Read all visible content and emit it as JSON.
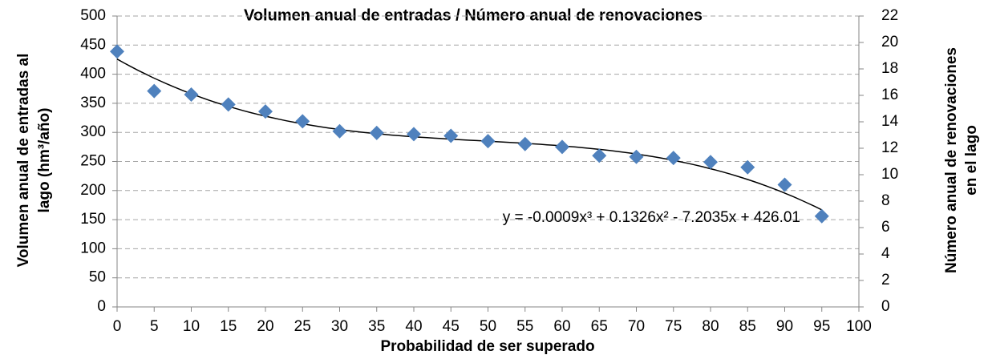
{
  "chart_data": {
    "type": "scatter",
    "title": "Volumen anual de entradas / Número anual de renovaciones",
    "xlabel": "Probabilidad de ser superado",
    "ylabel": [
      "Volumen  anual de entradas al",
      "lago (hm³/año)"
    ],
    "y2label": [
      "Número anual de renovaciones",
      "en el lago"
    ],
    "x": [
      0,
      5,
      10,
      15,
      20,
      25,
      30,
      35,
      40,
      45,
      50,
      55,
      60,
      65,
      70,
      75,
      80,
      85,
      90,
      95
    ],
    "series": [
      {
        "color": "#4f81bd",
        "values": [
          439,
          371,
          365,
          348,
          336,
          319,
          302,
          299,
          297,
          294,
          285,
          280,
          275,
          260,
          258,
          256,
          249,
          240,
          210,
          156
        ]
      }
    ],
    "trendline": {
      "label": "y = -0.0009x³ + 0.1326x² - 7.2035x + 426.01",
      "coefficients": [
        -0.0009,
        0.1326,
        -7.2035,
        426.01
      ],
      "color": "#000000"
    },
    "xlim": [
      0,
      100
    ],
    "xticks": [
      0,
      5,
      10,
      15,
      20,
      25,
      30,
      35,
      40,
      45,
      50,
      55,
      60,
      65,
      70,
      75,
      80,
      85,
      90,
      95,
      100
    ],
    "ylim": [
      0,
      500
    ],
    "yticks": [
      0,
      50,
      100,
      150,
      200,
      250,
      300,
      350,
      400,
      450,
      500
    ],
    "y2lim": [
      0,
      22
    ],
    "y2ticks": [
      0,
      2,
      4,
      6,
      8,
      10,
      12,
      14,
      16,
      18,
      20,
      22
    ],
    "grid": true
  }
}
